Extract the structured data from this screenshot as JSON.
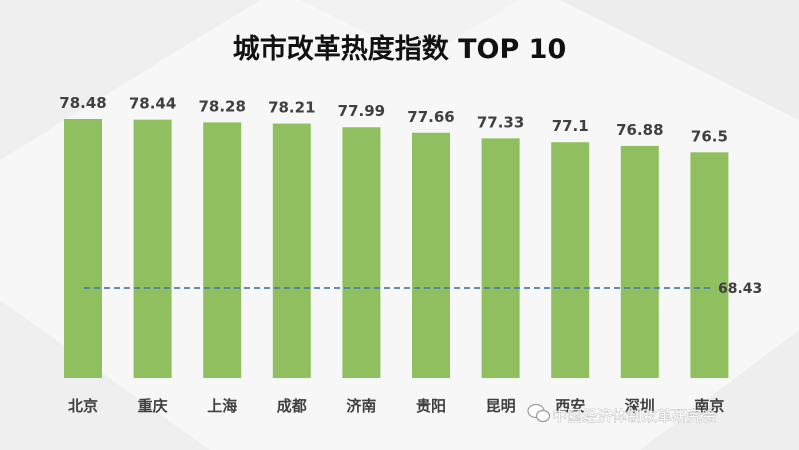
{
  "chart_data": {
    "type": "bar",
    "title": "城市改革热度指数 TOP 10",
    "categories": [
      "北京",
      "重庆",
      "上海",
      "成都",
      "济南",
      "贵阳",
      "昆明",
      "西安",
      "深圳",
      "南京"
    ],
    "values": [
      78.48,
      78.44,
      78.28,
      78.21,
      77.99,
      77.66,
      77.33,
      77.1,
      76.88,
      76.5
    ],
    "value_labels": [
      "78.48",
      "78.44",
      "78.28",
      "78.21",
      "77.99",
      "77.66",
      "77.33",
      "77.1",
      "76.88",
      "76.5"
    ],
    "reference_line": {
      "value": 68.43,
      "label": "68.43",
      "color": "#4a7fa8",
      "style": "dashed"
    },
    "bar_color": "#8fbf5e",
    "xlabel": "",
    "ylabel": "",
    "grid": false,
    "legend": "none"
  },
  "watermark": {
    "text": "中国经济体制改革研究会",
    "icon": "wechat-icon"
  },
  "colors": {
    "background": "#f7f7f7",
    "title": "#111111",
    "label": "#404040"
  }
}
